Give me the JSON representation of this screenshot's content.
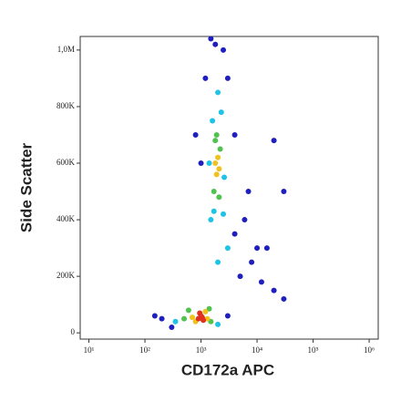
{
  "chart_data": {
    "type": "scatter",
    "x_label": "CD172a APC",
    "y_label": "Side Scatter",
    "xscale": "log",
    "xlim": [
      7,
      1450000
    ],
    "ylim": [
      -22000,
      1048000
    ],
    "xticks": [
      {
        "value": 10,
        "label": "10¹"
      },
      {
        "value": 100,
        "label": "10²"
      },
      {
        "value": 1000,
        "label": "10³"
      },
      {
        "value": 10000,
        "label": "10⁴"
      },
      {
        "value": 100000,
        "label": "10⁵"
      },
      {
        "value": 1000000,
        "label": "10⁶"
      }
    ],
    "yticks": [
      {
        "value": 0,
        "label": "0"
      },
      {
        "value": 200000,
        "label": "200K"
      },
      {
        "value": 400000,
        "label": "400K"
      },
      {
        "value": 600000,
        "label": "600K"
      },
      {
        "value": 800000,
        "label": "800K"
      },
      {
        "value": 1000000,
        "label": "1,0M"
      }
    ],
    "series": [
      {
        "color": "#1f1fbf",
        "x": [
          200,
          150,
          300,
          3000,
          5000,
          8000,
          12000,
          20000,
          4000,
          6000,
          1000,
          1200,
          2500,
          1800,
          3000,
          10000,
          30000,
          4000,
          20000,
          15000,
          800,
          7000,
          1500,
          30000
        ],
        "y": [
          50000,
          60000,
          20000,
          60000,
          200000,
          250000,
          180000,
          150000,
          350000,
          400000,
          600000,
          900000,
          1000000,
          1020000,
          900000,
          300000,
          120000,
          700000,
          680000,
          300000,
          700000,
          500000,
          1040000,
          500000
        ]
      },
      {
        "color": "#1fc3e6",
        "x": [
          350,
          2000,
          1500,
          2500,
          1600,
          2300,
          2000,
          1700,
          2600,
          1400,
          3000,
          2000
        ],
        "y": [
          40000,
          30000,
          400000,
          420000,
          750000,
          780000,
          850000,
          430000,
          550000,
          600000,
          300000,
          250000
        ]
      },
      {
        "color": "#4fc24f",
        "x": [
          500,
          1500,
          600,
          1400,
          1700,
          2200,
          1900,
          2100,
          1800
        ],
        "y": [
          50000,
          40000,
          80000,
          85000,
          500000,
          650000,
          700000,
          480000,
          680000
        ]
      },
      {
        "color": "#f0c21f",
        "x": [
          700,
          1300,
          800,
          1200,
          1900,
          2000,
          1800,
          2100
        ],
        "y": [
          55000,
          50000,
          40000,
          75000,
          560000,
          620000,
          600000,
          580000
        ]
      },
      {
        "color": "#e0301f",
        "x": [
          900,
          1000,
          1100,
          950,
          1050
        ],
        "y": [
          50000,
          60000,
          45000,
          70000,
          55000
        ]
      }
    ]
  }
}
